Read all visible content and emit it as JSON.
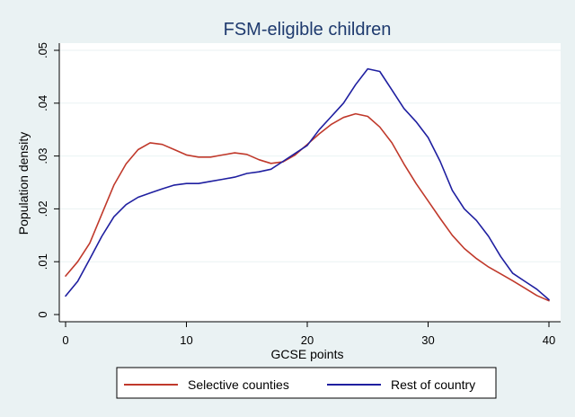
{
  "chart_data": {
    "type": "line",
    "title": "FSM-eligible children",
    "xlabel": "GCSE points",
    "ylabel": "Population density",
    "xlim": [
      0,
      40
    ],
    "ylim": [
      0,
      0.05
    ],
    "x_ticks": [
      0,
      10,
      20,
      30,
      40
    ],
    "y_ticks": [
      0,
      0.01,
      0.02,
      0.03,
      0.04,
      0.05
    ],
    "x_tick_labels": [
      "0",
      "10",
      "20",
      "30",
      "40"
    ],
    "y_tick_labels": [
      "0",
      ".01",
      ".02",
      ".03",
      ".04",
      ".05"
    ],
    "grid": true,
    "legend_position": "bottom",
    "series": [
      {
        "name": "Selective counties",
        "color": "#c0392b",
        "points": [
          [
            0,
            0.0073
          ],
          [
            1,
            0.01
          ],
          [
            2,
            0.0135
          ],
          [
            3,
            0.019
          ],
          [
            4,
            0.0245
          ],
          [
            5,
            0.0285
          ],
          [
            6,
            0.0312
          ],
          [
            7,
            0.0325
          ],
          [
            8,
            0.0322
          ],
          [
            9,
            0.0312
          ],
          [
            10,
            0.0302
          ],
          [
            11,
            0.0298
          ],
          [
            12,
            0.0298
          ],
          [
            13,
            0.0302
          ],
          [
            14,
            0.0306
          ],
          [
            15,
            0.0303
          ],
          [
            16,
            0.0293
          ],
          [
            17,
            0.0286
          ],
          [
            18,
            0.0289
          ],
          [
            19,
            0.0302
          ],
          [
            20,
            0.0322
          ],
          [
            21,
            0.0342
          ],
          [
            22,
            0.036
          ],
          [
            23,
            0.0373
          ],
          [
            24,
            0.038
          ],
          [
            25,
            0.0375
          ],
          [
            26,
            0.0355
          ],
          [
            27,
            0.0325
          ],
          [
            28,
            0.0285
          ],
          [
            29,
            0.0248
          ],
          [
            30,
            0.0215
          ],
          [
            31,
            0.0182
          ],
          [
            32,
            0.015
          ],
          [
            33,
            0.0125
          ],
          [
            34,
            0.0106
          ],
          [
            35,
            0.009
          ],
          [
            36,
            0.0077
          ],
          [
            37,
            0.0064
          ],
          [
            38,
            0.005
          ],
          [
            39,
            0.0036
          ],
          [
            40,
            0.0026
          ]
        ]
      },
      {
        "name": "Rest of country",
        "color": "#1f1fa0",
        "points": [
          [
            0,
            0.0035
          ],
          [
            1,
            0.0063
          ],
          [
            2,
            0.0105
          ],
          [
            3,
            0.0148
          ],
          [
            4,
            0.0185
          ],
          [
            5,
            0.0208
          ],
          [
            6,
            0.0222
          ],
          [
            7,
            0.023
          ],
          [
            8,
            0.0238
          ],
          [
            9,
            0.0245
          ],
          [
            10,
            0.0248
          ],
          [
            11,
            0.0248
          ],
          [
            12,
            0.0252
          ],
          [
            13,
            0.0256
          ],
          [
            14,
            0.026
          ],
          [
            15,
            0.0267
          ],
          [
            16,
            0.027
          ],
          [
            17,
            0.0275
          ],
          [
            18,
            0.029
          ],
          [
            19,
            0.0305
          ],
          [
            20,
            0.032
          ],
          [
            21,
            0.035
          ],
          [
            22,
            0.0375
          ],
          [
            23,
            0.04
          ],
          [
            24,
            0.0435
          ],
          [
            25,
            0.0465
          ],
          [
            26,
            0.046
          ],
          [
            27,
            0.0425
          ],
          [
            28,
            0.039
          ],
          [
            29,
            0.0365
          ],
          [
            30,
            0.0335
          ],
          [
            31,
            0.029
          ],
          [
            32,
            0.0235
          ],
          [
            33,
            0.02
          ],
          [
            34,
            0.0178
          ],
          [
            35,
            0.0148
          ],
          [
            36,
            0.011
          ],
          [
            37,
            0.0078
          ],
          [
            38,
            0.0063
          ],
          [
            39,
            0.0048
          ],
          [
            40,
            0.0028
          ]
        ]
      }
    ]
  }
}
